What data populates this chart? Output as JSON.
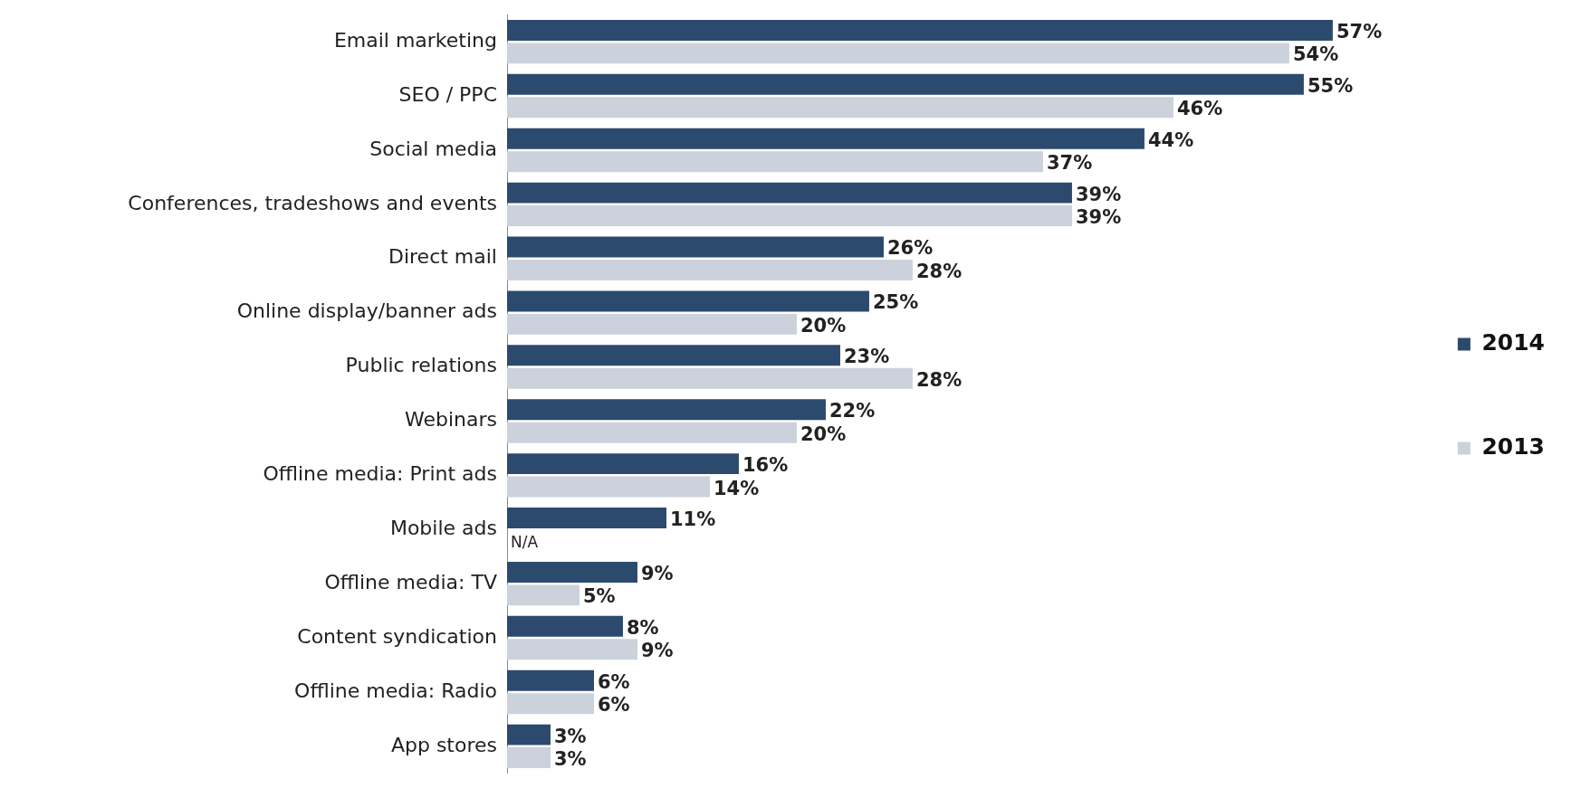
{
  "chart_data": {
    "type": "bar",
    "orientation": "horizontal",
    "legend": "right",
    "categories": [
      "Email marketing",
      "SEO / PPC",
      "Social media",
      "Conferences, tradeshows and events",
      "Direct mail",
      "Online display/banner ads",
      "Public relations",
      "Webinars",
      "Offline media: Print ads",
      "Mobile ads",
      "Offline media: TV",
      "Content syndication",
      "Offline media: Radio",
      "App stores"
    ],
    "series": [
      {
        "name": "2014",
        "color": "#2c4a6d",
        "values": [
          57,
          55,
          44,
          39,
          26,
          25,
          23,
          22,
          16,
          11,
          9,
          8,
          6,
          3
        ],
        "value_labels": [
          "57%",
          "55%",
          "44%",
          "39%",
          "26%",
          "25%",
          "23%",
          "22%",
          "16%",
          "11%",
          "9%",
          "8%",
          "6%",
          "3%"
        ]
      },
      {
        "name": "2013",
        "color": "#cbd2dc",
        "values": [
          54,
          46,
          37,
          39,
          28,
          20,
          28,
          20,
          14,
          null,
          5,
          9,
          6,
          3
        ],
        "value_labels": [
          "54%",
          "46%",
          "37%",
          "39%",
          "28%",
          "20%",
          "28%",
          "20%",
          "14%",
          "N/A",
          "5%",
          "9%",
          "6%",
          "3%"
        ]
      }
    ]
  }
}
